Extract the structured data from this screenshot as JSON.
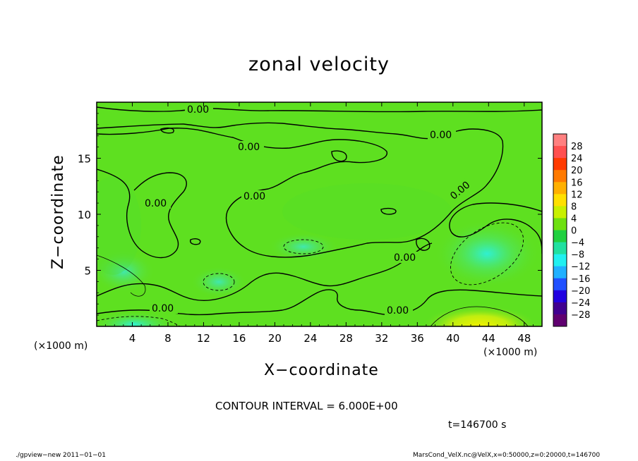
{
  "title": "zonal velocity",
  "x_axis": {
    "label": "X−coordinate",
    "unit_left": "(×1000 m)",
    "unit_right": "(×1000 m)",
    "ticks": [
      4,
      8,
      12,
      16,
      20,
      24,
      28,
      32,
      36,
      40,
      44,
      48
    ],
    "range": [
      0,
      50
    ]
  },
  "y_axis": {
    "label": "Z−coordinate",
    "ticks": [
      5,
      10,
      15
    ],
    "range": [
      0,
      20
    ]
  },
  "contour_interval_text": "CONTOUR INTERVAL = 6.000E+00",
  "time_text": "t=146700 s",
  "footer_left": "./gpview−new  2011−01−01",
  "footer_right": "MarsCond_VelX.nc@VelX,x=0:50000,z=0:20000,t=146700",
  "chart_data": {
    "type": "heatmap",
    "title": "zonal velocity",
    "xlabel": "X−coordinate",
    "ylabel": "Z−coordinate",
    "xlim": [
      0,
      50
    ],
    "ylim": [
      0,
      20
    ],
    "x_unit": "(×1000 m)",
    "contour_interval": 6.0,
    "contour_labels": [
      "0.00",
      "0.00",
      "0.00",
      "0.00",
      "0.00",
      "0.00",
      "0.00",
      "0.00",
      "0.00"
    ],
    "colorbar": {
      "levels": [
        "28",
        "24",
        "20",
        "16",
        "12",
        "8",
        "4",
        "0",
        "−4",
        "−8",
        "−12",
        "−16",
        "−20",
        "−24",
        "−28"
      ],
      "colors": [
        "#ff8080",
        "#ff5050",
        "#ff3a00",
        "#ff7a00",
        "#ffb000",
        "#ffe000",
        "#c8f000",
        "#6ee010",
        "#20d040",
        "#20e0a0",
        "#20f0f0",
        "#20b0ff",
        "#2050ff",
        "#2000e0",
        "#400090",
        "#600070"
      ]
    }
  }
}
